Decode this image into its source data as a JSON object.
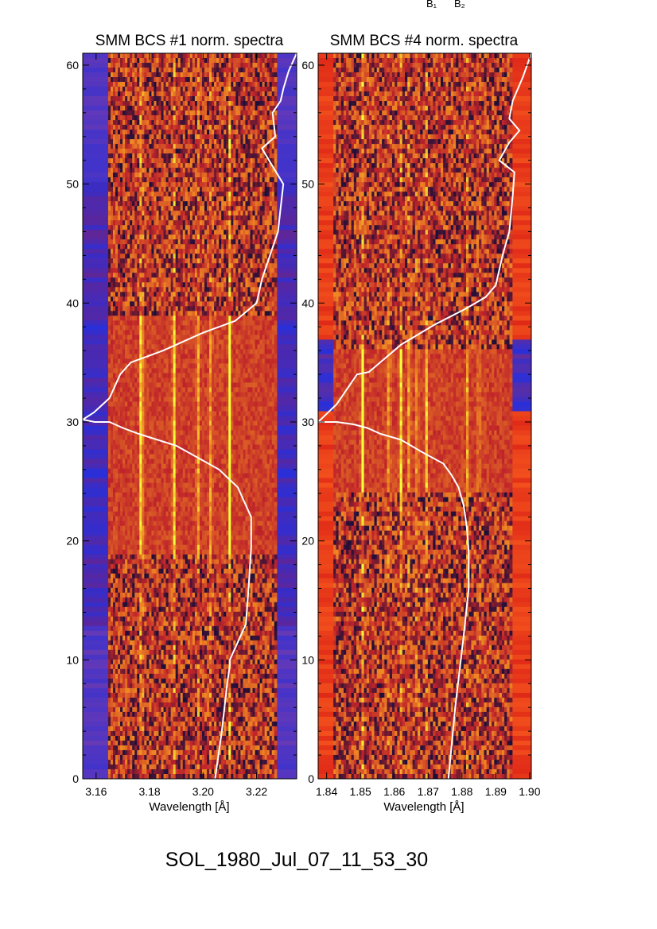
{
  "figure": {
    "top_annotation": [
      "B₁",
      "B₂"
    ],
    "footer_label": "SOL_1980_Jul_07_11_53_30"
  },
  "colors": {
    "background_band": "#2a2fd8",
    "spectrum_dark": "#1a0f3a",
    "spectrum_mid": "#c0242a",
    "spectrum_bright": "#f08a22",
    "line_peak": "#f2ff3a",
    "lightcurve": "#ffffff"
  },
  "chart_data": [
    {
      "type": "heatmap",
      "title": "SMM BCS #1 norm. spectra",
      "xlabel": "Wavelength [Å]",
      "ylabel": "",
      "xlim": [
        3.155,
        3.235
      ],
      "ylim": [
        0,
        61
      ],
      "xticks": [
        "3.16",
        "3.18",
        "3.20",
        "3.22"
      ],
      "yticks": [
        "0",
        "10",
        "20",
        "30",
        "40",
        "50",
        "60"
      ],
      "spectrum_xrange": [
        3.1645,
        3.2275
      ],
      "flare_time_range": [
        19,
        39
      ],
      "emission_lines": [
        {
          "wavelength": 3.177,
          "strength": 1.0
        },
        {
          "wavelength": 3.189,
          "strength": 0.75
        },
        {
          "wavelength": 3.198,
          "strength": 0.55
        },
        {
          "wavelength": 3.203,
          "strength": 0.5
        },
        {
          "wavelength": 3.21,
          "strength": 0.85
        }
      ],
      "lightcurve": {
        "color": "#ffffff",
        "x": [
          3.2045,
          3.207,
          3.209,
          3.21,
          3.21,
          3.212,
          3.216,
          3.217,
          3.218,
          3.218,
          3.213,
          3.206,
          3.198,
          3.19,
          3.176,
          3.17,
          3.165,
          3.1595,
          3.155,
          3.1592,
          3.165,
          3.169,
          3.173,
          3.185,
          3.2,
          3.212,
          3.22,
          3.222,
          3.225,
          3.228,
          3.229,
          3.23,
          3.226,
          3.222,
          3.227,
          3.226,
          3.229,
          3.23,
          3.232,
          3.235
        ],
        "y": [
          0,
          4,
          8,
          9.5,
          10,
          11,
          13,
          16,
          19.5,
          22,
          24.5,
          26,
          27,
          28,
          29,
          29.5,
          30,
          30,
          30.2,
          30.8,
          32,
          34,
          35,
          36,
          37.5,
          38.5,
          40,
          42,
          44,
          46,
          48,
          50,
          51.5,
          53,
          54,
          56,
          57,
          58,
          59.5,
          61
        ]
      }
    },
    {
      "type": "heatmap",
      "title": "SMM BCS #4 norm. spectra",
      "xlabel": "Wavelength [Å]",
      "ylabel": "",
      "xlim": [
        1.8375,
        1.9005
      ],
      "ylim": [
        0,
        61
      ],
      "xticks": [
        "1.84",
        "1.85",
        "1.86",
        "1.87",
        "1.88",
        "1.89",
        "1.90"
      ],
      "yticks": [
        "0",
        "10",
        "20",
        "30",
        "40",
        "50",
        "60"
      ],
      "spectrum_xrange": [
        1.842,
        1.8948
      ],
      "flare_time_range": [
        24,
        36
      ],
      "emission_lines": [
        {
          "wavelength": 1.8505,
          "strength": 1.0
        },
        {
          "wavelength": 1.8585,
          "strength": 0.6
        },
        {
          "wavelength": 1.8618,
          "strength": 0.75
        },
        {
          "wavelength": 1.8645,
          "strength": 0.65
        },
        {
          "wavelength": 1.8668,
          "strength": 0.6
        },
        {
          "wavelength": 1.8695,
          "strength": 0.5
        },
        {
          "wavelength": 1.8815,
          "strength": 0.45
        },
        {
          "wavelength": 1.885,
          "strength": 0.4
        }
      ],
      "lightcurve": {
        "color": "#ffffff",
        "x": [
          1.876,
          1.878,
          1.8805,
          1.882,
          1.882,
          1.8815,
          1.8805,
          1.879,
          1.877,
          1.8745,
          1.868,
          1.862,
          1.856,
          1.852,
          1.848,
          1.843,
          1.8375,
          1.843,
          1.849,
          1.8525,
          1.862,
          1.872,
          1.881,
          1.887,
          1.89,
          1.892,
          1.894,
          1.895,
          1.8955,
          1.891,
          1.894,
          1.897,
          1.894,
          1.895,
          1.898,
          1.9005
        ],
        "y": [
          0,
          6,
          12,
          16,
          19,
          21,
          23,
          24.5,
          25.5,
          26.5,
          27.5,
          28.5,
          29,
          29.5,
          29.8,
          30,
          30,
          31.5,
          34,
          34.2,
          36.5,
          38.2,
          39.5,
          40.5,
          41.5,
          44,
          46,
          49,
          51,
          52,
          53.5,
          54.5,
          55.5,
          57,
          59,
          61
        ]
      }
    }
  ]
}
